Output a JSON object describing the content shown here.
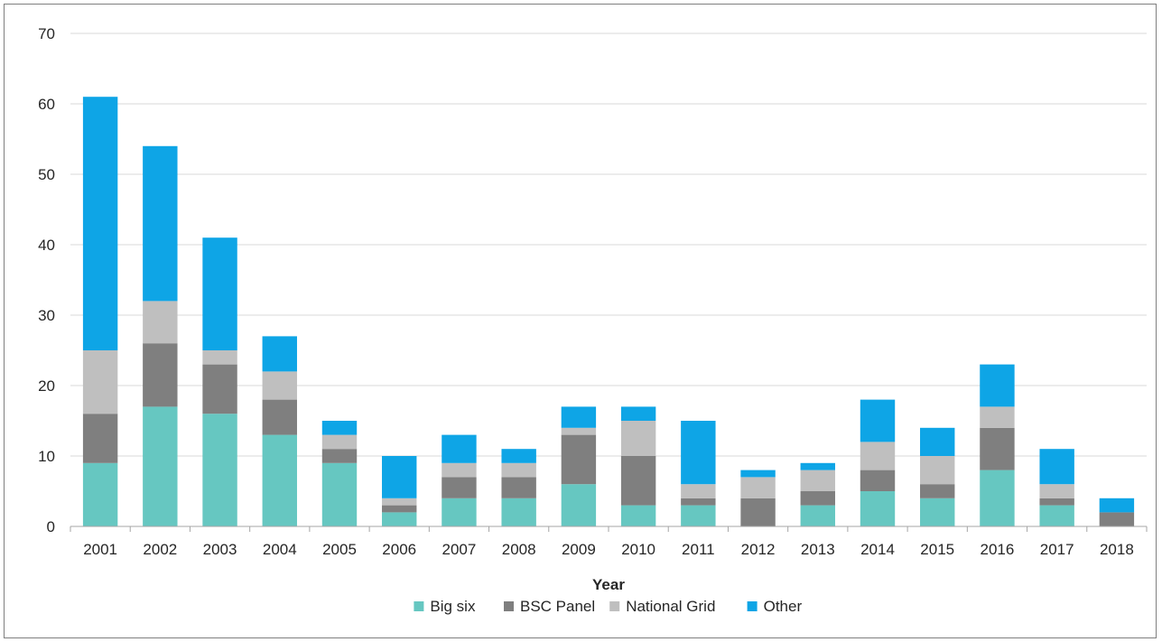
{
  "chart_data": {
    "type": "bar",
    "stacked": true,
    "title": "",
    "xlabel": "Year",
    "ylabel": "",
    "ylim": [
      0,
      70
    ],
    "yticks": [
      0,
      10,
      20,
      30,
      40,
      50,
      60,
      70
    ],
    "grid": true,
    "legend_position": "bottom",
    "categories": [
      "2001",
      "2002",
      "2003",
      "2004",
      "2005",
      "2006",
      "2007",
      "2008",
      "2009",
      "2010",
      "2011",
      "2012",
      "2013",
      "2014",
      "2015",
      "2016",
      "2017",
      "2018"
    ],
    "series": [
      {
        "name": "Big six",
        "color": "#66c7c1",
        "values": [
          9,
          17,
          16,
          13,
          9,
          2,
          4,
          4,
          6,
          3,
          3,
          0,
          3,
          5,
          4,
          8,
          3,
          0
        ]
      },
      {
        "name": "BSC Panel",
        "color": "#7f7f7f",
        "values": [
          7,
          9,
          7,
          5,
          2,
          1,
          3,
          3,
          7,
          7,
          1,
          4,
          2,
          3,
          2,
          6,
          1,
          2
        ]
      },
      {
        "name": "National Grid",
        "color": "#bfbfbf",
        "values": [
          9,
          6,
          2,
          4,
          2,
          1,
          2,
          2,
          1,
          5,
          2,
          3,
          3,
          4,
          4,
          3,
          2,
          0
        ]
      },
      {
        "name": "Other",
        "color": "#0ea5e6",
        "values": [
          36,
          22,
          16,
          5,
          2,
          6,
          4,
          2,
          3,
          2,
          9,
          1,
          1,
          6,
          4,
          6,
          5,
          2
        ]
      }
    ]
  }
}
